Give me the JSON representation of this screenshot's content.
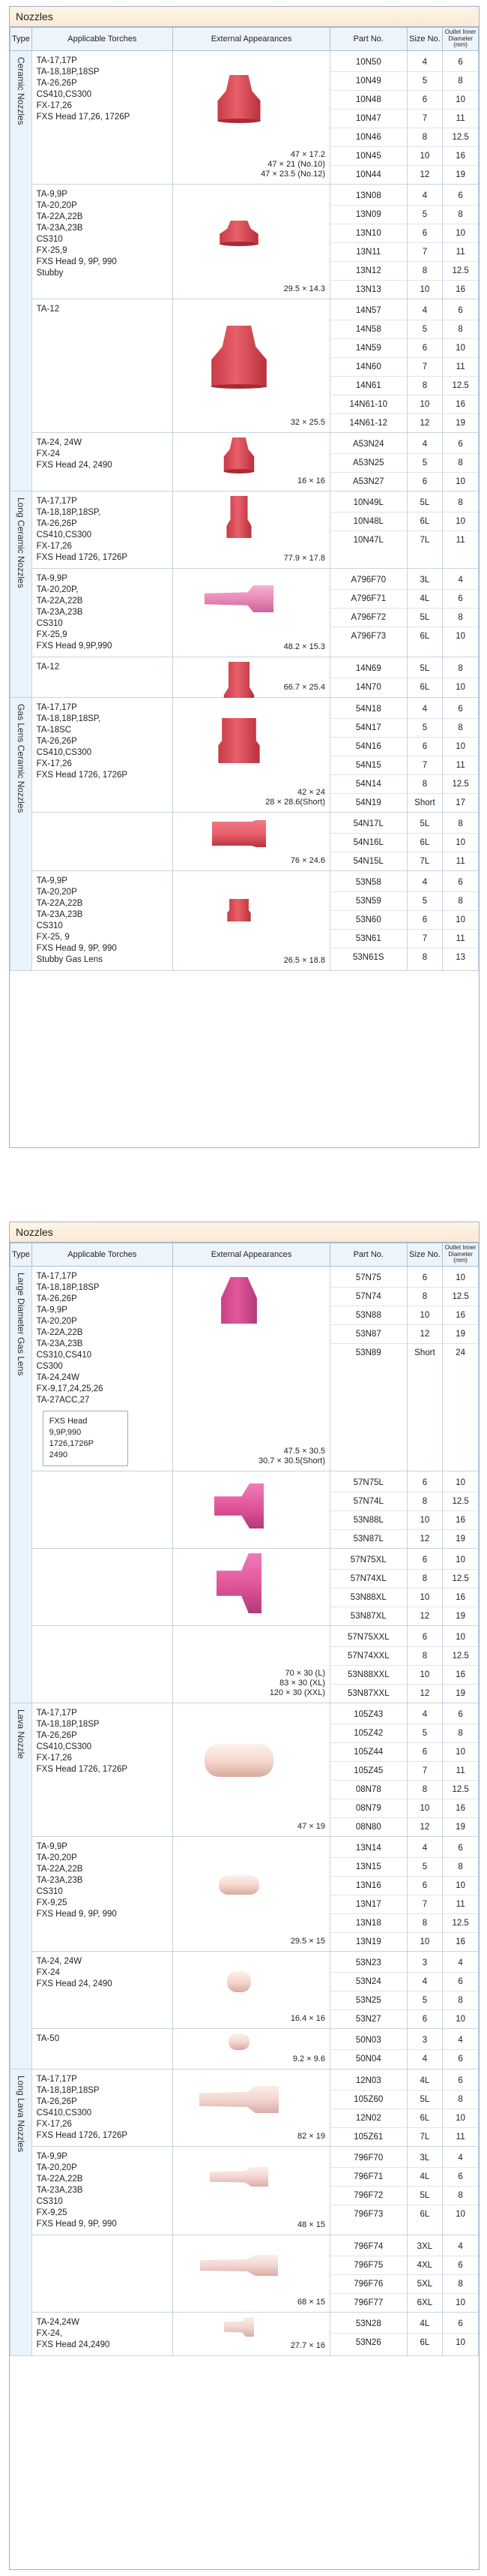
{
  "headers": {
    "type": "Type",
    "torches": "Applicable Torches",
    "appearance": "External Appearances",
    "part": "Part No.",
    "size": "Size No.",
    "outlet": "Outlet Inner Diameter (mm)"
  },
  "sections": [
    {
      "title": "Nozzles",
      "types": [
        {
          "label": "Ceramic Nozzles",
          "groups": [
            {
              "torches": [
                "TA-17,17P",
                "TA-18,18P,18SP",
                "TA-26,26P",
                "CS410,CS300",
                "FX-17,26",
                "FXS Head 17,26, 1726P"
              ],
              "dims": [
                "47 × 17.2",
                "47 × 21 (No.10)",
                "47 × 23.5 (No.12)"
              ],
              "rows": [
                [
                  "10N50",
                  "4",
                  "6"
                ],
                [
                  "10N49",
                  "5",
                  "8"
                ],
                [
                  "10N48",
                  "6",
                  "10"
                ],
                [
                  "10N47",
                  "7",
                  "11"
                ],
                [
                  "10N46",
                  "8",
                  "12.5"
                ],
                [
                  "10N45",
                  "10",
                  "16"
                ],
                [
                  "10N44",
                  "12",
                  "19"
                ]
              ]
            },
            {
              "torches": [
                "TA-9,9P",
                "TA-20,20P",
                "TA-22A,22B",
                "TA-23A,23B",
                "CS310",
                "FX-25,9",
                "FXS Head 9, 9P, 990",
                "Stubby"
              ],
              "dims": [
                "29.5 × 14.3"
              ],
              "rows": [
                [
                  "13N08",
                  "4",
                  "6"
                ],
                [
                  "13N09",
                  "5",
                  "8"
                ],
                [
                  "13N10",
                  "6",
                  "10"
                ],
                [
                  "13N11",
                  "7",
                  "11"
                ],
                [
                  "13N12",
                  "8",
                  "12.5"
                ],
                [
                  "13N13",
                  "10",
                  "16"
                ]
              ]
            },
            {
              "torches": [
                "TA-12"
              ],
              "dims": [
                "32 × 25.5"
              ],
              "rows": [
                [
                  "14N57",
                  "4",
                  "6"
                ],
                [
                  "14N58",
                  "5",
                  "8"
                ],
                [
                  "14N59",
                  "6",
                  "10"
                ],
                [
                  "14N60",
                  "7",
                  "11"
                ],
                [
                  "14N61",
                  "8",
                  "12.5"
                ],
                [
                  "14N61-10",
                  "10",
                  "16"
                ],
                [
                  "14N61-12",
                  "12",
                  "19"
                ]
              ]
            },
            {
              "torches": [
                "TA-24, 24W",
                "FX-24",
                "FXS Head 24, 2490"
              ],
              "dims": [
                "16 × 16"
              ],
              "rows": [
                [
                  "A53N24",
                  "4",
                  "6"
                ],
                [
                  "A53N25",
                  "5",
                  "8"
                ],
                [
                  "A53N27",
                  "6",
                  "10"
                ]
              ]
            }
          ]
        },
        {
          "label": "Long Ceramic Nozzles",
          "groups": [
            {
              "torches": [
                "TA-17,17P",
                "TA-18,18P,18SP,",
                "TA-26,26P",
                "CS410,CS300",
                "FX-17,26",
                "FXS Head 1726, 1726P"
              ],
              "dims": [
                "77.9 × 17.8"
              ],
              "rows": [
                [
                  "10N49L",
                  "5L",
                  "8"
                ],
                [
                  "10N48L",
                  "6L",
                  "10"
                ],
                [
                  "10N47L",
                  "7L",
                  "11"
                ]
              ]
            },
            {
              "torches": [
                "TA-9,9P",
                "TA-20,20P,",
                "TA-22A,22B",
                "TA-23A,23B",
                "CS310",
                "FX-25,9",
                "FXS Head 9,9P,990"
              ],
              "dims": [
                "48.2 × 15.3"
              ],
              "rows": [
                [
                  "A796F70",
                  "3L",
                  "4"
                ],
                [
                  "A796F71",
                  "4L",
                  "6"
                ],
                [
                  "A796F72",
                  "5L",
                  "8"
                ],
                [
                  "A796F73",
                  "6L",
                  "10"
                ]
              ]
            },
            {
              "torches": [
                "TA-12"
              ],
              "dims": [
                "66.7 × 25.4"
              ],
              "rows": [
                [
                  "14N69",
                  "5L",
                  "8"
                ],
                [
                  "14N70",
                  "6L",
                  "10"
                ]
              ]
            }
          ]
        },
        {
          "label": "Gas Lens Ceramic Nozzles",
          "groups": [
            {
              "torches": [
                "TA-17,17P",
                "TA-18,18P,18SP,",
                "TA-18SC",
                "TA-26,26P",
                "CS410,CS300",
                "FX-17,26",
                "FXS Head 1726, 1726P"
              ],
              "dims": [
                "42 × 24",
                "28 × 28.6(Short)"
              ],
              "rows": [
                [
                  "54N18",
                  "4",
                  "6"
                ],
                [
                  "54N17",
                  "5",
                  "8"
                ],
                [
                  "54N16",
                  "6",
                  "10"
                ],
                [
                  "54N15",
                  "7",
                  "11"
                ],
                [
                  "54N14",
                  "8",
                  "12.5"
                ],
                [
                  "54N19",
                  "Short",
                  "17"
                ]
              ]
            },
            {
              "torches": [],
              "dims": [
                "76 × 24.6"
              ],
              "rows": [
                [
                  "54N17L",
                  "5L",
                  "8"
                ],
                [
                  "54N16L",
                  "6L",
                  "10"
                ],
                [
                  "54N15L",
                  "7L",
                  "11"
                ]
              ]
            },
            {
              "torches": [
                "TA-9,9P",
                "TA-20,20P",
                "TA-22A,22B",
                "TA-23A,23B",
                "CS310",
                "FX-25, 9",
                "FXS Head 9, 9P, 990",
                "Stubby Gas Lens"
              ],
              "dims": [
                "26.5 × 18.8"
              ],
              "rows": [
                [
                  "53N58",
                  "4",
                  "6"
                ],
                [
                  "53N59",
                  "5",
                  "8"
                ],
                [
                  "53N60",
                  "6",
                  "10"
                ],
                [
                  "53N61",
                  "7",
                  "11"
                ],
                [
                  "53N61S",
                  "8",
                  "13"
                ]
              ]
            }
          ]
        }
      ]
    },
    {
      "title": "Nozzles",
      "types": [
        {
          "label": "Large Diameter Gas Lens",
          "groups": [
            {
              "torches": [
                "TA-17,17P",
                "TA-18,18P,18SP",
                "TA-26,26P",
                "TA-9,9P",
                "TA-20,20P",
                "TA-22A,22B",
                "TA-23A,23B",
                "CS310,CS410",
                "CS300",
                "TA-24,24W",
                "FX-9,17,24,25,26",
                "TA-27ACC,27"
              ],
              "boxed": [
                "FXS Head",
                "9,9P,990",
                "1726,1726P",
                "2490"
              ],
              "dims": [
                "47.5 × 30.5",
                "30.7 × 30.5(Short)"
              ],
              "rows": [
                [
                  "57N75",
                  "6",
                  "10"
                ],
                [
                  "57N74",
                  "8",
                  "12.5"
                ],
                [
                  "53N88",
                  "10",
                  "16"
                ],
                [
                  "53N87",
                  "12",
                  "19"
                ],
                [
                  "53N89",
                  "Short",
                  "24"
                ]
              ]
            },
            {
              "torches": [],
              "dims": [],
              "rows": [
                [
                  "57N75L",
                  "6",
                  "10"
                ],
                [
                  "57N74L",
                  "8",
                  "12.5"
                ],
                [
                  "53N88L",
                  "10",
                  "16"
                ],
                [
                  "53N87L",
                  "12",
                  "19"
                ]
              ]
            },
            {
              "torches": [],
              "dims": [],
              "rows": [
                [
                  "57N75XL",
                  "6",
                  "10"
                ],
                [
                  "57N74XL",
                  "8",
                  "12.5"
                ],
                [
                  "53N88XL",
                  "10",
                  "16"
                ],
                [
                  "53N87XL",
                  "12",
                  "19"
                ]
              ]
            },
            {
              "torches": [],
              "dims": [
                "70 × 30 (L)",
                "83 × 30 (XL)",
                "120 × 30 (XXL)"
              ],
              "rows": [
                [
                  "57N75XXL",
                  "6",
                  "10"
                ],
                [
                  "57N74XXL",
                  "8",
                  "12.5"
                ],
                [
                  "53N88XXL",
                  "10",
                  "16"
                ],
                [
                  "53N87XXL",
                  "12",
                  "19"
                ]
              ]
            }
          ]
        },
        {
          "label": "Lava Nozzle",
          "groups": [
            {
              "torches": [
                "TA-17,17P",
                "TA-18,18P,18SP",
                "TA-26,26P",
                "CS410,CS300",
                "FX-17,26",
                "FXS Head 1726, 1726P"
              ],
              "dims": [
                "47 × 19"
              ],
              "rows": [
                [
                  "105Z43",
                  "4",
                  "6"
                ],
                [
                  "105Z42",
                  "5",
                  "8"
                ],
                [
                  "105Z44",
                  "6",
                  "10"
                ],
                [
                  "105Z45",
                  "7",
                  "11"
                ],
                [
                  "08N78",
                  "8",
                  "12.5"
                ],
                [
                  "08N79",
                  "10",
                  "16"
                ],
                [
                  "08N80",
                  "12",
                  "19"
                ]
              ]
            },
            {
              "torches": [
                "TA-9,9P",
                "TA-20,20P",
                "TA-22A,22B",
                "TA-23A,23B",
                "CS310",
                "FX-9,25",
                "FXS Head 9, 9P, 990"
              ],
              "dims": [
                "29.5 × 15"
              ],
              "rows": [
                [
                  "13N14",
                  "4",
                  "6"
                ],
                [
                  "13N15",
                  "5",
                  "8"
                ],
                [
                  "13N16",
                  "6",
                  "10"
                ],
                [
                  "13N17",
                  "7",
                  "11"
                ],
                [
                  "13N18",
                  "8",
                  "12.5"
                ],
                [
                  "13N19",
                  "10",
                  "16"
                ]
              ]
            },
            {
              "torches": [
                "TA-24, 24W",
                "FX-24",
                "FXS Head 24, 2490"
              ],
              "dims": [
                "16.4 × 16"
              ],
              "rows": [
                [
                  "53N23",
                  "3",
                  "4"
                ],
                [
                  "53N24",
                  "4",
                  "6"
                ],
                [
                  "53N25",
                  "5",
                  "8"
                ],
                [
                  "53N27",
                  "6",
                  "10"
                ]
              ]
            },
            {
              "torches": [
                "TA-50"
              ],
              "dims": [
                "9.2 × 9.6"
              ],
              "rows": [
                [
                  "50N03",
                  "3",
                  "4"
                ],
                [
                  "50N04",
                  "4",
                  "6"
                ]
              ]
            }
          ]
        },
        {
          "label": "Long Lava Nozzles",
          "groups": [
            {
              "torches": [
                "TA-17,17P",
                "TA-18,18P,18SP",
                "TA-26,26P",
                "CS410,CS300",
                "FX-17,26",
                "FXS Head 1726, 1726P"
              ],
              "dims": [
                "82 × 19"
              ],
              "rows": [
                [
                  "12N03",
                  "4L",
                  "6"
                ],
                [
                  "105Z60",
                  "5L",
                  "8"
                ],
                [
                  "12N02",
                  "6L",
                  "10"
                ],
                [
                  "105Z61",
                  "7L",
                  "11"
                ]
              ]
            },
            {
              "torches": [
                "TA-9,9P",
                "TA-20,20P",
                "TA-22A,22B",
                "TA-23A,23B",
                "CS310",
                "FX-9,25",
                "FXS Head 9, 9P, 990"
              ],
              "dims": [
                "48 × 15"
              ],
              "rows": [
                [
                  "796F70",
                  "3L",
                  "4"
                ],
                [
                  "796F71",
                  "4L",
                  "6"
                ],
                [
                  "796F72",
                  "5L",
                  "8"
                ],
                [
                  "796F73",
                  "6L",
                  "10"
                ]
              ]
            },
            {
              "torches": [],
              "dims": [
                "68 × 15"
              ],
              "rows": [
                [
                  "796F74",
                  "3XL",
                  "4"
                ],
                [
                  "796F75",
                  "4XL",
                  "6"
                ],
                [
                  "796F76",
                  "5XL",
                  "8"
                ],
                [
                  "796F77",
                  "6XL",
                  "10"
                ]
              ]
            },
            {
              "torches": [
                "TA-24,24W",
                "FX-24,",
                "FXS Head 24,2490"
              ],
              "dims": [
                "27.7 × 16"
              ],
              "rows": [
                [
                  "53N28",
                  "4L",
                  "6"
                ],
                [
                  "53N26",
                  "6L",
                  "10"
                ]
              ]
            }
          ]
        }
      ]
    }
  ],
  "colors": {
    "ceramic": "#e8606a",
    "long_ceramic_pink": "#e88ab6",
    "lava": "#f6d8cf",
    "long_lava": "#f3d5d0",
    "large_lens": "#e2579a"
  }
}
